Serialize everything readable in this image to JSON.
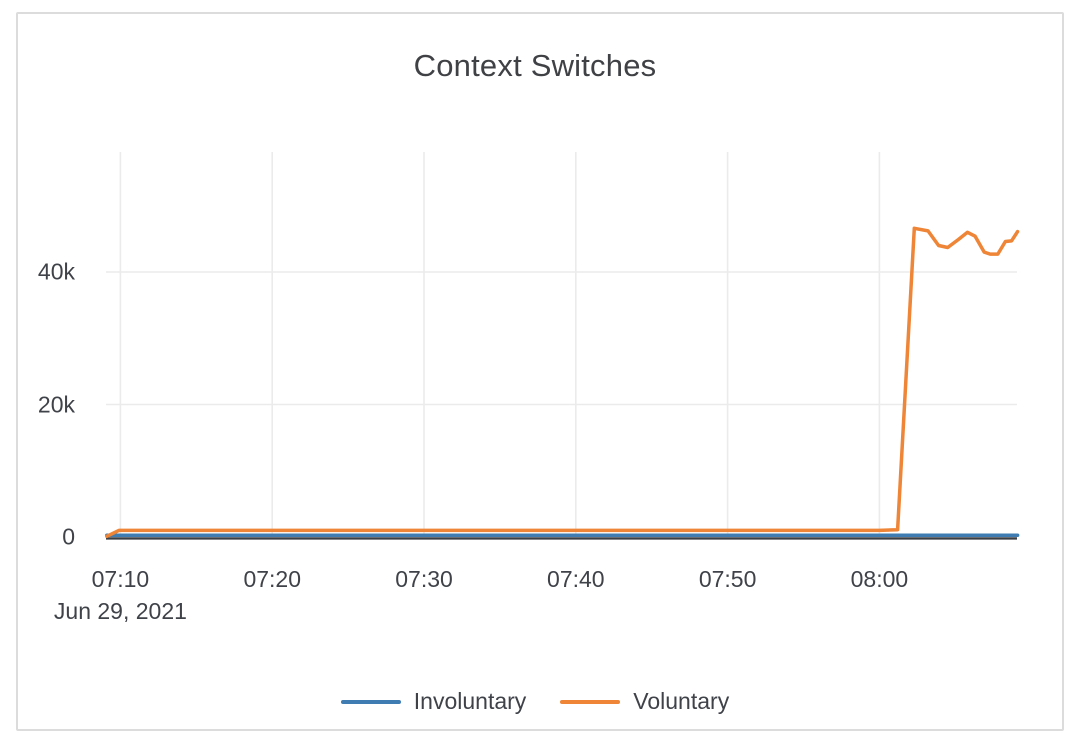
{
  "chart_data": {
    "type": "line",
    "title": "Context Switches",
    "x_axis": {
      "date_label": "Jun 29, 2021",
      "unit": "time of day (t = minutes after 07:00)",
      "ticks": [
        {
          "label": "07:10",
          "t": 10
        },
        {
          "label": "07:20",
          "t": 20
        },
        {
          "label": "07:30",
          "t": 30
        },
        {
          "label": "07:40",
          "t": 40
        },
        {
          "label": "07:50",
          "t": 50
        },
        {
          "label": "08:00",
          "t": 60
        }
      ],
      "range_minutes": [
        9.05,
        69.1
      ]
    },
    "y_axis": {
      "ticks": [
        {
          "label": "0",
          "value": 0
        },
        {
          "label": "20k",
          "value": 20000
        },
        {
          "label": "40k",
          "value": 40000
        }
      ],
      "range": [
        0,
        58000
      ]
    },
    "grid": true,
    "legend_position": "bottom-center",
    "series": [
      {
        "name": "Involuntary",
        "color": "#3e7cb1",
        "points": [
          [
            9.1,
            250
          ],
          [
            20,
            250
          ],
          [
            30,
            250
          ],
          [
            40,
            250
          ],
          [
            50,
            250
          ],
          [
            60,
            250
          ],
          [
            69.1,
            250
          ]
        ]
      },
      {
        "name": "Voluntary",
        "color": "#ee8537",
        "points": [
          [
            9.1,
            100
          ],
          [
            9.9,
            1000
          ],
          [
            15,
            1000
          ],
          [
            20,
            1000
          ],
          [
            25,
            1000
          ],
          [
            30,
            1000
          ],
          [
            35,
            1000
          ],
          [
            40,
            1000
          ],
          [
            45,
            1000
          ],
          [
            50,
            1000
          ],
          [
            55,
            1000
          ],
          [
            60,
            1000
          ],
          [
            61.2,
            1100
          ],
          [
            62.3,
            46600
          ],
          [
            63.2,
            46200
          ],
          [
            63.9,
            44000
          ],
          [
            64.5,
            43700
          ],
          [
            65.2,
            44900
          ],
          [
            65.8,
            46000
          ],
          [
            66.3,
            45400
          ],
          [
            66.9,
            43000
          ],
          [
            67.3,
            42700
          ],
          [
            67.8,
            42700
          ],
          [
            68.3,
            44600
          ],
          [
            68.7,
            44700
          ],
          [
            69.1,
            46100
          ]
        ]
      }
    ]
  },
  "colors": {
    "panel_border": "#dcdcdc",
    "grid_line": "#ebebeb",
    "zero_line": "#3a3e45",
    "text": "#3f4249"
  }
}
